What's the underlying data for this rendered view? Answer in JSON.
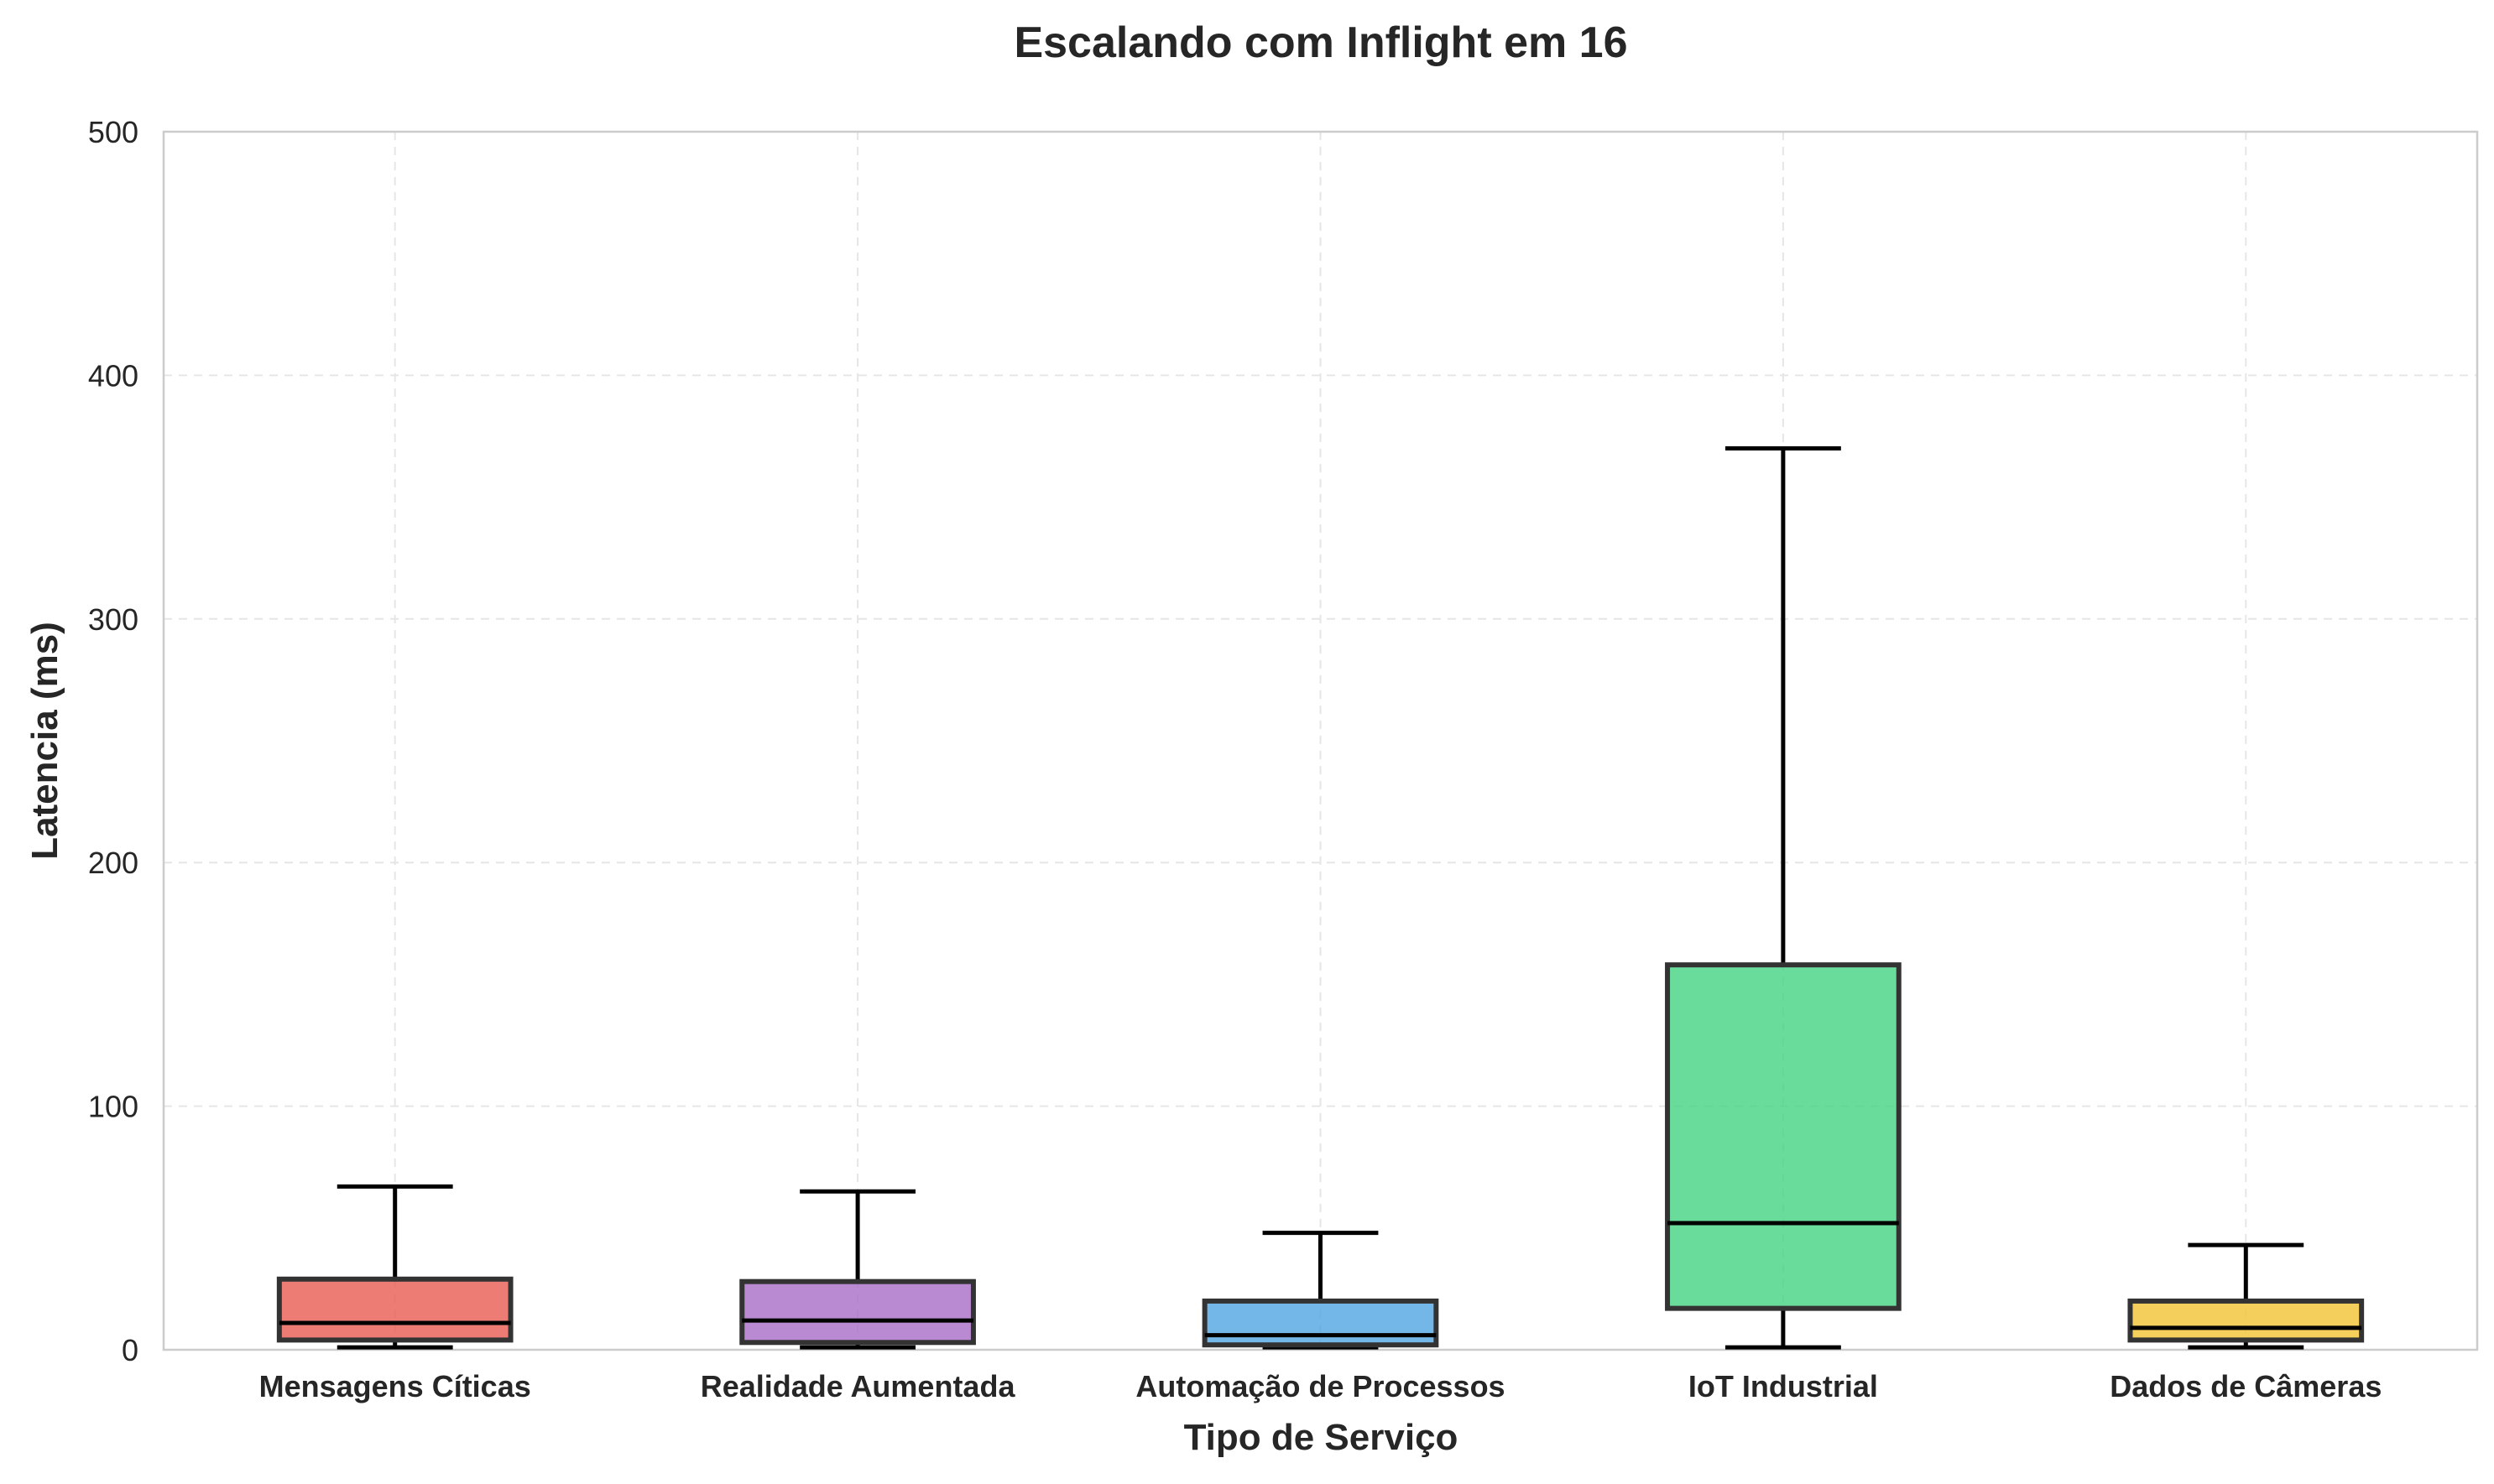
{
  "chart_data": {
    "type": "boxplot",
    "title": "Escalando com Inflight em 16",
    "xlabel": "Tipo de Serviço",
    "ylabel": "Latencia (ms)",
    "ylim": [
      0,
      500
    ],
    "yticks": [
      0,
      100,
      200,
      300,
      400,
      500
    ],
    "grid": true,
    "categories": [
      "Mensagens Cíticas",
      "Realidade Aumentada",
      "Automação de Processos",
      "IoT Industrial",
      "Dados de Câmeras"
    ],
    "colors": [
      "#e8594d",
      "#a569c4",
      "#4aa3e0",
      "#3fd17f",
      "#f2c12e"
    ],
    "boxes": [
      {
        "whislo": 1,
        "q1": 4,
        "median": 11,
        "q3": 29,
        "whishi": 67
      },
      {
        "whislo": 1,
        "q1": 3,
        "median": 12,
        "q3": 28,
        "whishi": 65
      },
      {
        "whislo": 1,
        "q1": 2,
        "median": 6,
        "q3": 20,
        "whishi": 48
      },
      {
        "whislo": 1,
        "q1": 17,
        "median": 52,
        "q3": 158,
        "whishi": 370
      },
      {
        "whislo": 1,
        "q1": 4,
        "median": 9,
        "q3": 20,
        "whishi": 43
      }
    ]
  }
}
